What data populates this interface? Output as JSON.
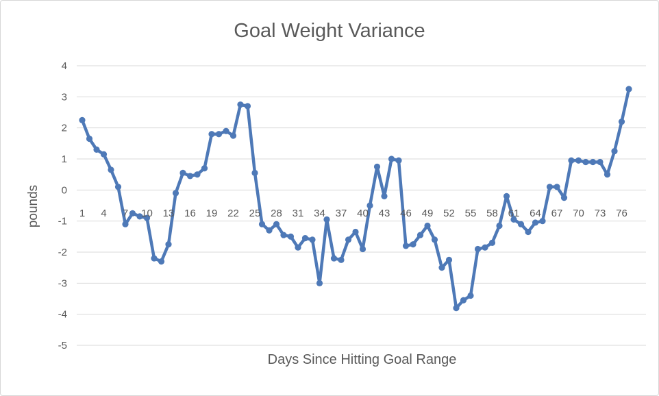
{
  "window": {
    "background_color": "#ffffff",
    "border_color": "#d7d7d7"
  },
  "styles": {
    "text_color": "#595959",
    "gridline_color": "#d9d9d9",
    "series_color": "#4e79b7"
  },
  "chart_data": {
    "type": "line",
    "title": "Goal Weight Variance",
    "xlabel": "Days Since Hitting Goal Range",
    "ylabel": "pounds",
    "ylim": [
      -5,
      4
    ],
    "y_ticks": [
      4,
      3,
      2,
      1,
      0,
      -1,
      -2,
      -3,
      -4,
      -5
    ],
    "x_tick_labels": [
      1,
      4,
      7,
      10,
      13,
      16,
      19,
      22,
      25,
      28,
      31,
      34,
      37,
      40,
      43,
      46,
      49,
      52,
      55,
      58,
      61,
      64,
      67,
      70,
      73,
      76
    ],
    "grid": true,
    "legend_position": "none",
    "marker_style": "circle",
    "series": [
      {
        "name": "Goal Weight Variance",
        "color": "#4e79b7",
        "x": [
          1,
          2,
          3,
          4,
          5,
          6,
          7,
          8,
          9,
          10,
          11,
          12,
          13,
          14,
          15,
          16,
          17,
          18,
          19,
          20,
          21,
          22,
          23,
          24,
          25,
          26,
          27,
          28,
          29,
          30,
          31,
          32,
          33,
          34,
          35,
          36,
          37,
          38,
          39,
          40,
          41,
          42,
          43,
          44,
          45,
          46,
          47,
          48,
          49,
          50,
          51,
          52,
          53,
          54,
          55,
          56,
          57,
          58,
          59,
          60,
          61,
          62,
          63,
          64,
          65,
          66,
          67,
          68,
          69,
          70,
          71,
          72,
          73,
          74,
          75,
          76,
          77
        ],
        "values": [
          2.25,
          1.65,
          1.3,
          1.15,
          0.65,
          0.1,
          -1.1,
          -0.75,
          -0.85,
          -0.9,
          -2.2,
          -2.3,
          -1.75,
          -0.1,
          0.55,
          0.45,
          0.5,
          0.7,
          1.8,
          1.8,
          1.9,
          1.75,
          2.75,
          2.7,
          0.55,
          -1.1,
          -1.3,
          -1.1,
          -1.45,
          -1.5,
          -1.85,
          -1.55,
          -1.6,
          -3.0,
          -0.95,
          -2.2,
          -2.25,
          -1.6,
          -1.35,
          -1.9,
          -0.5,
          0.75,
          -0.2,
          1.0,
          0.95,
          -1.8,
          -1.75,
          -1.45,
          -1.15,
          -1.6,
          -2.5,
          -2.25,
          -3.8,
          -3.55,
          -3.4,
          -1.9,
          -1.85,
          -1.7,
          -1.15,
          -0.2,
          -0.95,
          -1.1,
          -1.35,
          -1.05,
          -1.0,
          0.1,
          0.1,
          -0.25,
          0.95,
          0.95,
          0.9,
          0.9,
          0.9,
          0.5,
          1.25,
          2.2,
          3.25
        ]
      }
    ]
  }
}
